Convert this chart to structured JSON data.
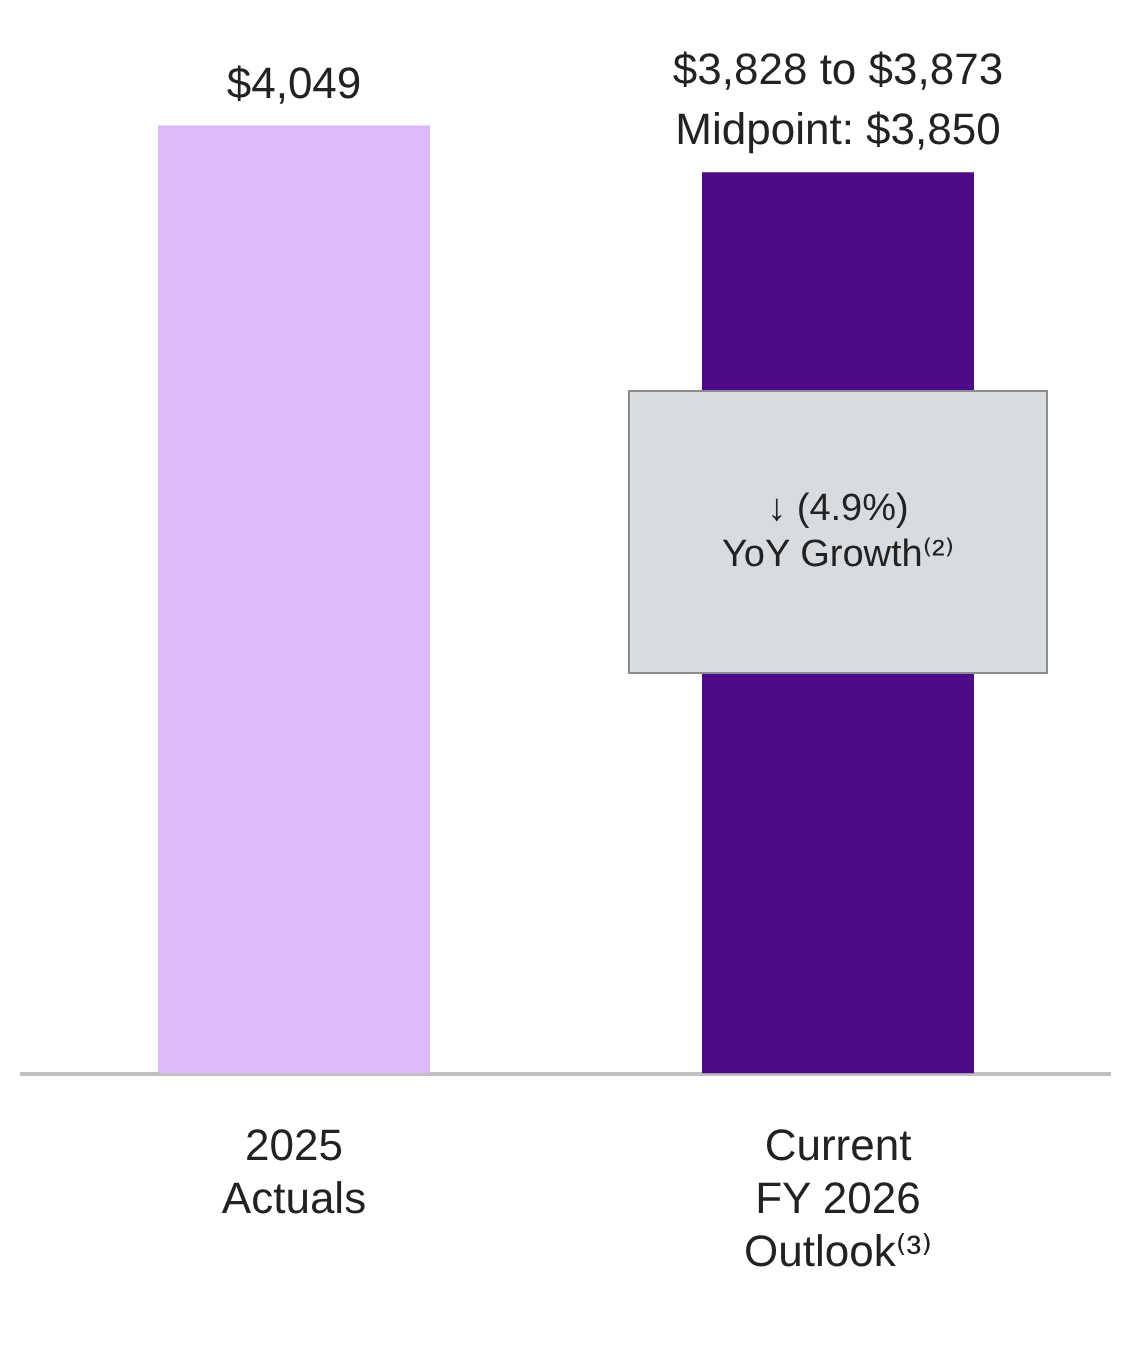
{
  "chart_data": {
    "type": "bar",
    "categories": [
      "2025\nActuals",
      "Current\nFY 2026\nOutlook⁽³⁾"
    ],
    "values": [
      4049,
      3850
    ],
    "colors": [
      "#dcb9f7",
      "#4f0a8a"
    ],
    "value_labels": [
      "$4,049",
      "$3,828 to $3,873\nMidpoint: $3,850"
    ],
    "annotations": [
      "↓ (4.9%)\nYoY Growth⁽²⁾"
    ],
    "grid": false,
    "legend": false
  }
}
